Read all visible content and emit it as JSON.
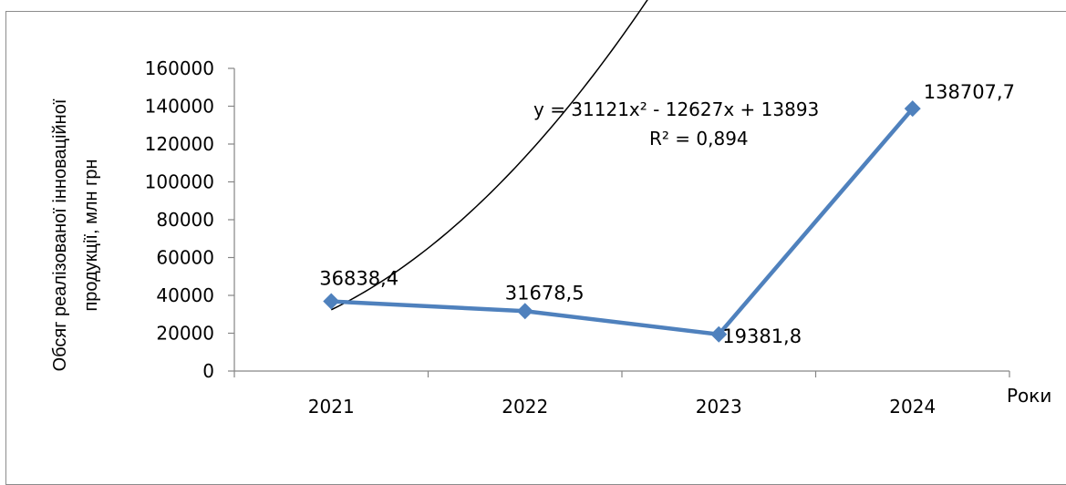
{
  "chart_data": {
    "type": "line",
    "categories": [
      "2021",
      "2022",
      "2023",
      "2024"
    ],
    "series": [
      {
        "values": [
          36838.4,
          31678.5,
          19381.8,
          138707.7
        ],
        "color": "#4f81bd"
      }
    ],
    "data_labels": [
      "36838,4",
      "31678,5",
      "19381,8",
      "138707,7"
    ],
    "trendline": {
      "type": "polynomial",
      "order": 2,
      "coefficients": [
        31121,
        -12627,
        13893
      ],
      "equation": "y = 31121x² - 12627x + 13893",
      "r_squared": "R² = 0,894",
      "color": "#000000"
    },
    "ylabel_lines": [
      "Обсяг реалізованої інноваційної",
      "продукції, млн грн"
    ],
    "xlabel": "Роки",
    "ylim": [
      0,
      160000
    ],
    "yticks": [
      0,
      20000,
      40000,
      60000,
      80000,
      100000,
      120000,
      140000,
      160000
    ],
    "ytick_labels": [
      "0",
      "20000",
      "40000",
      "60000",
      "80000",
      "100000",
      "120000",
      "140000",
      "160000"
    ],
    "grid": false,
    "legend": "none"
  }
}
